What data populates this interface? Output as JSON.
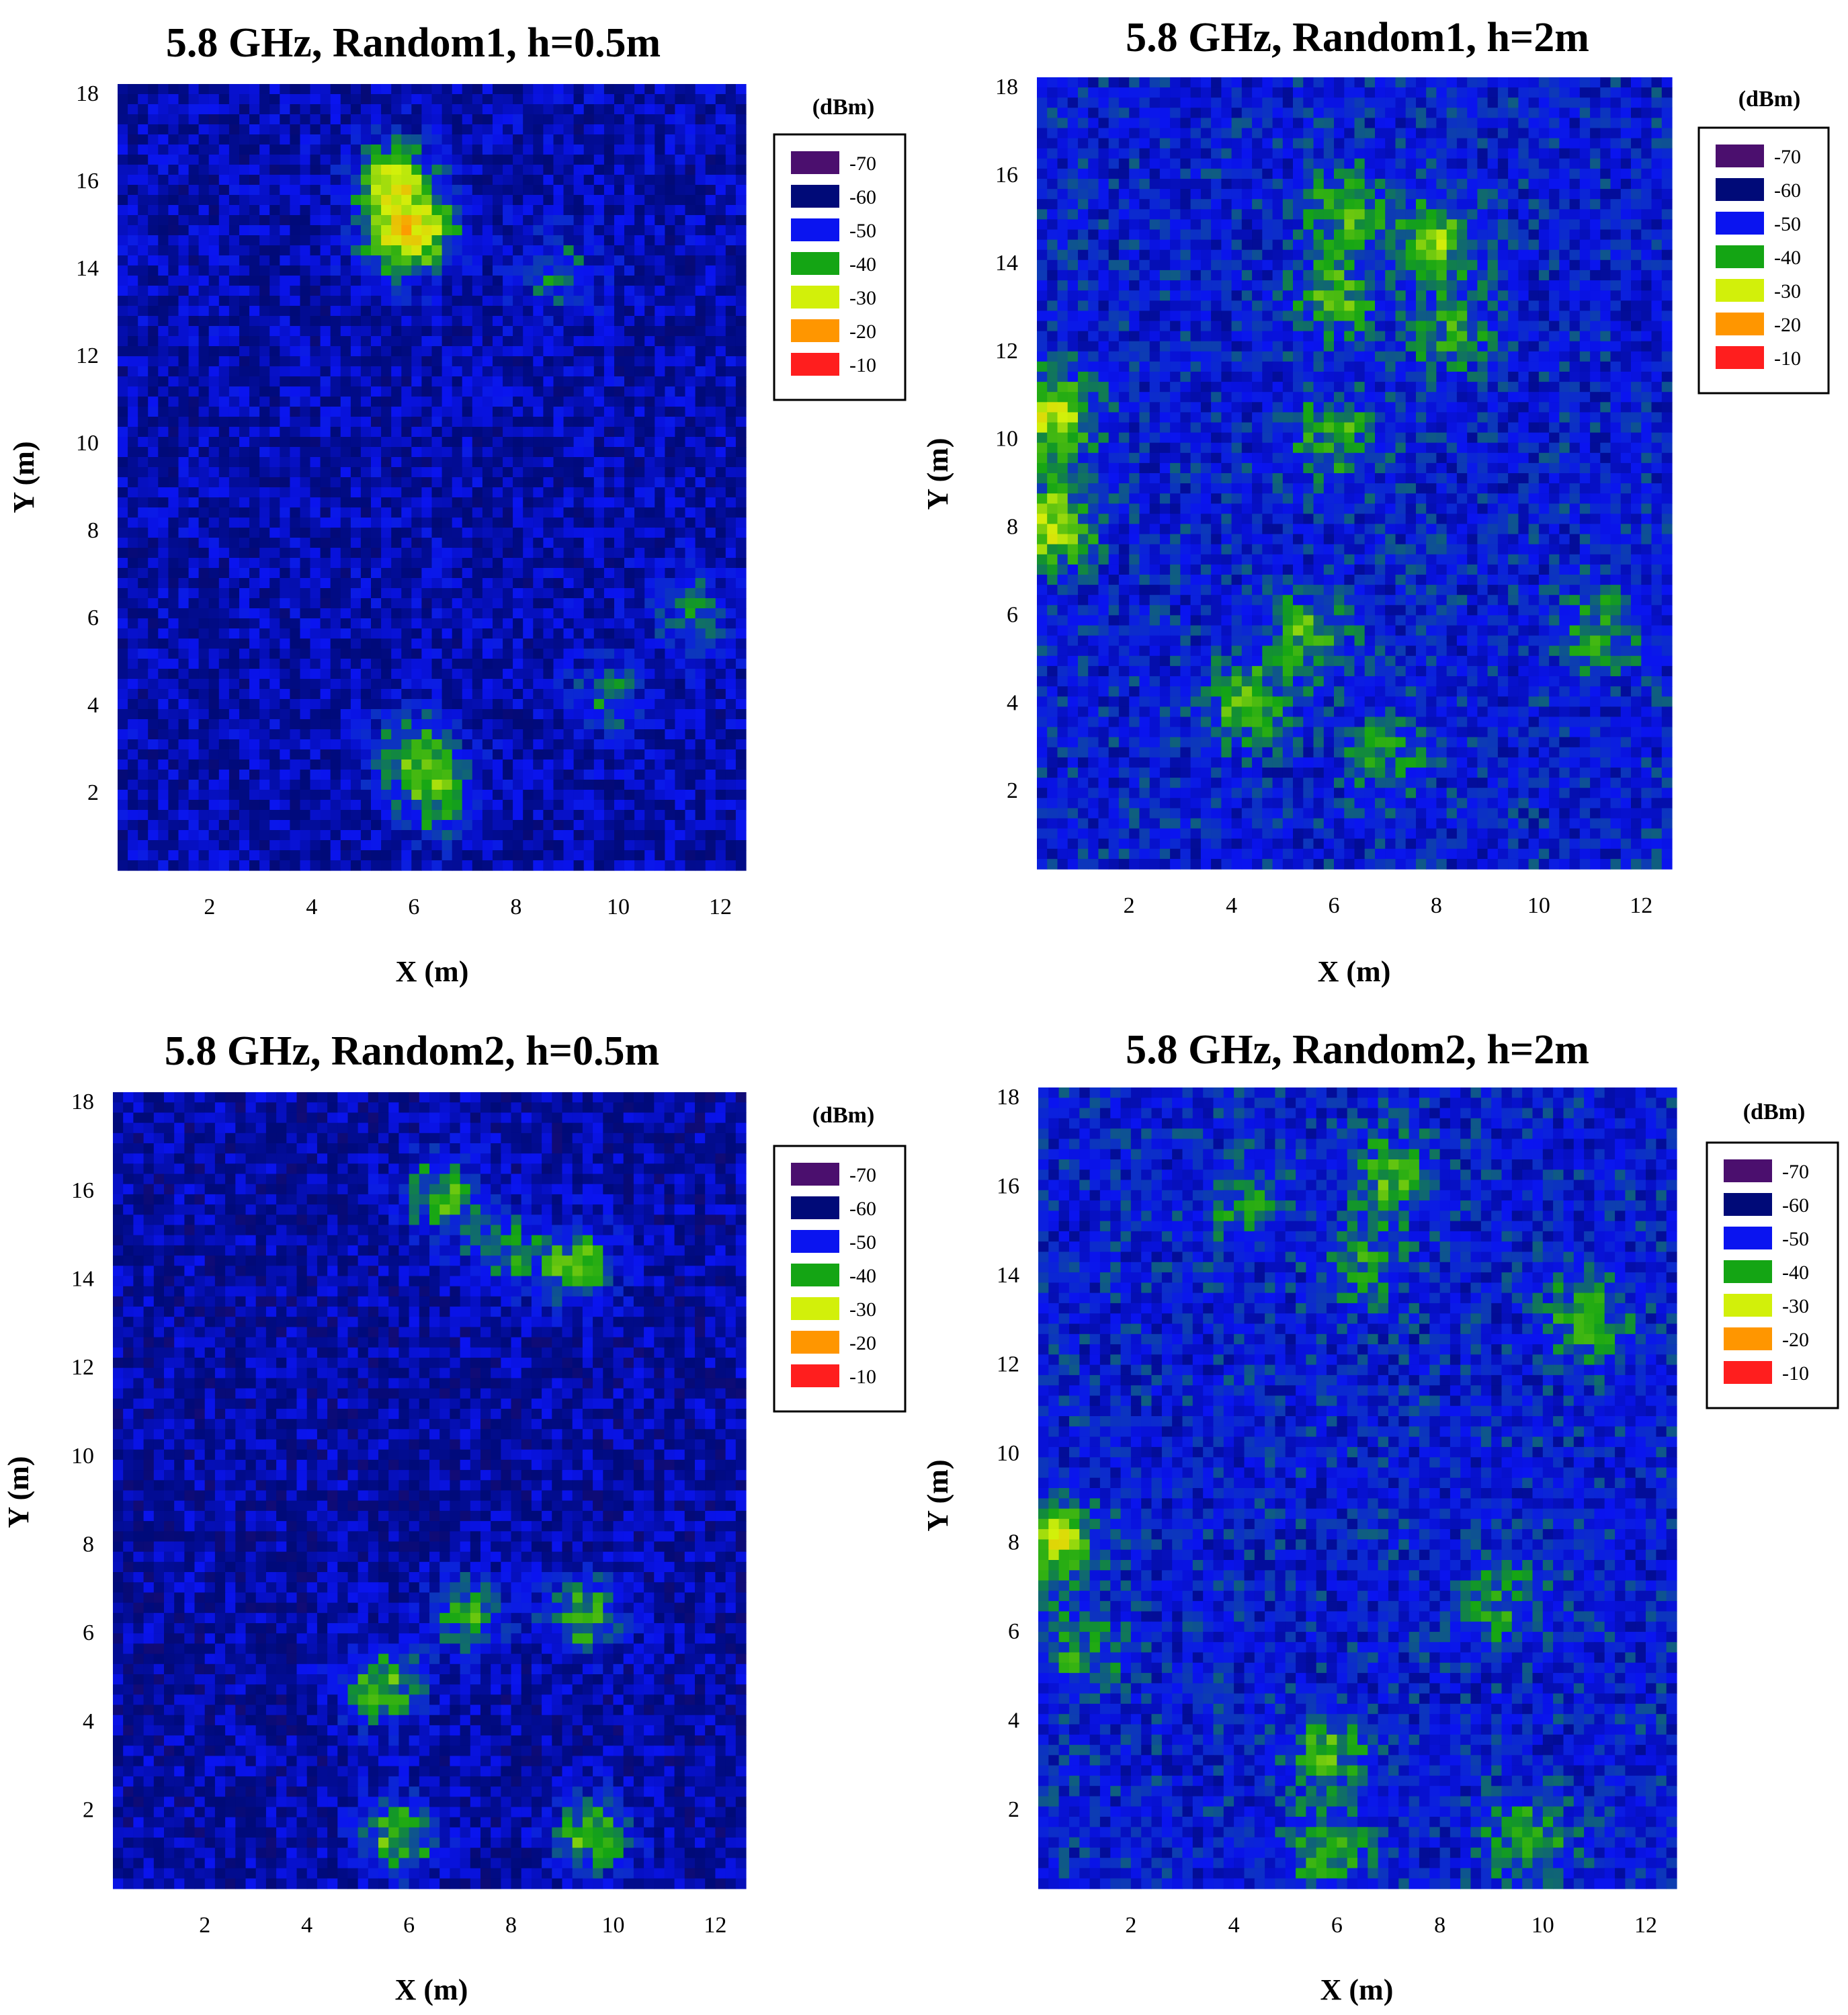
{
  "figure": {
    "colorbar_unit": "(dBm)",
    "colorbar_levels": [
      {
        "label": "-70",
        "color": "#4b0f6e"
      },
      {
        "label": "-60",
        "color": "#000a78"
      },
      {
        "label": "-50",
        "color": "#0a14f0"
      },
      {
        "label": "-40",
        "color": "#14a514"
      },
      {
        "label": "-30",
        "color": "#d2f00a"
      },
      {
        "label": "-20",
        "color": "#ff9600"
      },
      {
        "label": "-10",
        "color": "#ff1e1e"
      }
    ]
  },
  "chart_data": [
    {
      "type": "heatmap",
      "title": "5.8 GHz, Random1, h=0.5m",
      "xlabel": "X (m)",
      "ylabel": "Y (m)",
      "xlim": [
        0.2,
        12.5
      ],
      "ylim": [
        0.2,
        18.2
      ],
      "xticks": [
        "2",
        "4",
        "6",
        "8",
        "10",
        "12"
      ],
      "yticks": [
        "2",
        "4",
        "6",
        "8",
        "10",
        "12",
        "14",
        "16",
        "18"
      ],
      "value_unit": "dBm",
      "background_level": -55,
      "hotspots": [
        {
          "x": 5.6,
          "y": 16.0,
          "value": -33
        },
        {
          "x": 5.7,
          "y": 14.6,
          "value": -36
        },
        {
          "x": 6.3,
          "y": 14.9,
          "value": -42
        },
        {
          "x": 6.0,
          "y": 2.9,
          "value": -38
        },
        {
          "x": 6.5,
          "y": 1.8,
          "value": -40
        },
        {
          "x": 9.8,
          "y": 4.2,
          "value": -44
        },
        {
          "x": 11.5,
          "y": 6.1,
          "value": -43
        },
        {
          "x": 8.8,
          "y": 13.9,
          "value": -44
        }
      ]
    },
    {
      "type": "heatmap",
      "title": "5.8 GHz, Random1, h=2m",
      "xlabel": "X (m)",
      "ylabel": "Y (m)",
      "xlim": [
        0.2,
        12.6
      ],
      "ylim": [
        0.2,
        18.2
      ],
      "xticks": [
        "2",
        "4",
        "6",
        "8",
        "10",
        "12"
      ],
      "yticks": [
        "2",
        "4",
        "6",
        "8",
        "10",
        "12",
        "14",
        "16",
        "18"
      ],
      "value_unit": "dBm",
      "background_level": -50,
      "hotspots": [
        {
          "x": 0.5,
          "y": 10.5,
          "value": -30
        },
        {
          "x": 0.5,
          "y": 8.0,
          "value": -30
        },
        {
          "x": 6.2,
          "y": 15.2,
          "value": -38
        },
        {
          "x": 6.0,
          "y": 13.2,
          "value": -37
        },
        {
          "x": 8.0,
          "y": 14.5,
          "value": -35
        },
        {
          "x": 8.3,
          "y": 12.4,
          "value": -40
        },
        {
          "x": 6.0,
          "y": 10.0,
          "value": -38
        },
        {
          "x": 4.3,
          "y": 4.0,
          "value": -36
        },
        {
          "x": 5.5,
          "y": 5.5,
          "value": -38
        },
        {
          "x": 11.2,
          "y": 5.6,
          "value": -40
        },
        {
          "x": 7.0,
          "y": 2.8,
          "value": -42
        }
      ]
    },
    {
      "type": "heatmap",
      "title": "5.8 GHz, Random2, h=0.5m",
      "xlabel": "X (m)",
      "ylabel": "Y (m)",
      "xlim": [
        0.2,
        12.6
      ],
      "ylim": [
        0.2,
        18.2
      ],
      "xticks": [
        "2",
        "4",
        "6",
        "8",
        "10",
        "12"
      ],
      "yticks": [
        "2",
        "4",
        "6",
        "8",
        "10",
        "12",
        "14",
        "16",
        "18"
      ],
      "value_unit": "dBm",
      "background_level": -56,
      "hotspots": [
        {
          "x": 5.5,
          "y": 4.8,
          "value": -36
        },
        {
          "x": 5.8,
          "y": 1.4,
          "value": -36
        },
        {
          "x": 9.6,
          "y": 1.4,
          "value": -36
        },
        {
          "x": 9.4,
          "y": 6.4,
          "value": -37
        },
        {
          "x": 7.2,
          "y": 6.4,
          "value": -40
        },
        {
          "x": 9.3,
          "y": 14.3,
          "value": -37
        },
        {
          "x": 6.6,
          "y": 15.9,
          "value": -38
        },
        {
          "x": 7.8,
          "y": 14.6,
          "value": -42
        }
      ]
    },
    {
      "type": "heatmap",
      "title": "5.8 GHz, Random2, h=2m",
      "xlabel": "X (m)",
      "ylabel": "Y (m)",
      "xlim": [
        0.2,
        12.6
      ],
      "ylim": [
        0.2,
        18.2
      ],
      "xticks": [
        "2",
        "4",
        "6",
        "8",
        "10",
        "12"
      ],
      "yticks": [
        "2",
        "4",
        "6",
        "8",
        "10",
        "12",
        "14",
        "16",
        "18"
      ],
      "value_unit": "dBm",
      "background_level": -50,
      "hotspots": [
        {
          "x": 0.5,
          "y": 8.0,
          "value": -30
        },
        {
          "x": 1.0,
          "y": 5.5,
          "value": -40
        },
        {
          "x": 7.0,
          "y": 16.2,
          "value": -38
        },
        {
          "x": 6.5,
          "y": 14.2,
          "value": -40
        },
        {
          "x": 10.8,
          "y": 13.0,
          "value": -38
        },
        {
          "x": 5.8,
          "y": 3.2,
          "value": -38
        },
        {
          "x": 5.8,
          "y": 1.0,
          "value": -39
        },
        {
          "x": 9.7,
          "y": 1.3,
          "value": -38
        },
        {
          "x": 9.2,
          "y": 6.6,
          "value": -41
        },
        {
          "x": 4.2,
          "y": 15.7,
          "value": -42
        }
      ]
    }
  ]
}
